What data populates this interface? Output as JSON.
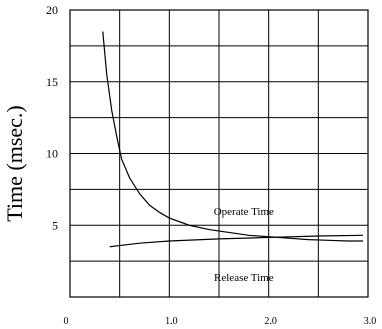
{
  "chart_data": {
    "type": "line",
    "title": "",
    "xlabel": "",
    "ylabel": "Time (msec.)",
    "xlim": [
      0,
      3.0
    ],
    "ylim": [
      0,
      20
    ],
    "x_ticks": [
      {
        "value": 0,
        "label": "0"
      },
      {
        "value": 1.0,
        "label": "1.0"
      },
      {
        "value": 2.0,
        "label": "2.0"
      },
      {
        "value": 3.0,
        "label": "3.0"
      }
    ],
    "y_ticks": [
      {
        "value": 5,
        "label": "5"
      },
      {
        "value": 10,
        "label": "10"
      },
      {
        "value": 15,
        "label": "15"
      },
      {
        "value": 20,
        "label": "20"
      }
    ],
    "grid": true,
    "grid_x": [
      0.5,
      1.0,
      1.5,
      2.0,
      2.5,
      3.0
    ],
    "grid_y": [
      2.5,
      5,
      7.5,
      10,
      12.5,
      15,
      17.5,
      20
    ],
    "series": [
      {
        "name": "Operate Time",
        "x": [
          0.33,
          0.37,
          0.42,
          0.47,
          0.52,
          0.6,
          0.7,
          0.8,
          0.9,
          1.0,
          1.2,
          1.4,
          1.6,
          1.8,
          2.0,
          2.2,
          2.4,
          2.6,
          2.8,
          2.95
        ],
        "y": [
          18.5,
          15.5,
          13.0,
          11.2,
          9.6,
          8.3,
          7.2,
          6.4,
          5.9,
          5.5,
          5.0,
          4.7,
          4.5,
          4.3,
          4.2,
          4.1,
          4.0,
          3.95,
          3.9,
          3.9
        ]
      },
      {
        "name": "Release Time",
        "x": [
          0.4,
          0.7,
          1.0,
          1.5,
          2.0,
          2.5,
          2.95
        ],
        "y": [
          3.5,
          3.75,
          3.9,
          4.05,
          4.15,
          4.25,
          4.3
        ]
      }
    ],
    "annotations": [
      {
        "text": "Operate Time",
        "x": 1.75,
        "y": 5.7
      },
      {
        "text": "Release Time",
        "x": 1.75,
        "y": 1.1
      }
    ]
  }
}
